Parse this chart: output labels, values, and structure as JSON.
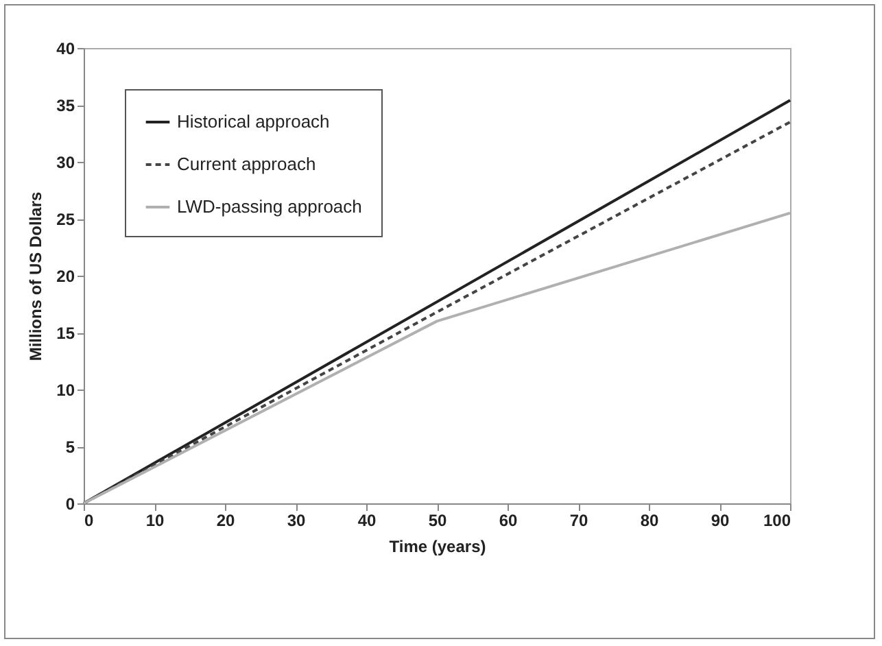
{
  "chart_data": {
    "type": "line",
    "xlabel": "Time (years)",
    "ylabel": "Millions of US Dollars",
    "xlim": [
      0,
      100
    ],
    "xticks": [
      0,
      10,
      20,
      30,
      40,
      50,
      60,
      70,
      80,
      90,
      100
    ],
    "ylim": [
      0,
      40
    ],
    "yticks": [
      0,
      5,
      10,
      15,
      20,
      25,
      30,
      35,
      40
    ],
    "grid": false,
    "legend": "top left",
    "marker": "none",
    "series": [
      {
        "name": "Historical approach",
        "color": "#222222",
        "line_style": "solid",
        "x": [
          0,
          100
        ],
        "values": [
          0,
          35.4
        ]
      },
      {
        "name": "Current approach",
        "color": "#444444",
        "line_style": "dashed",
        "x": [
          0,
          50,
          100
        ],
        "values": [
          0,
          16.8,
          33.5
        ]
      },
      {
        "name": "LWD-passing approach",
        "color": "#b0b0b0",
        "line_style": "solid",
        "x": [
          0,
          50,
          100
        ],
        "values": [
          0,
          16,
          25.5
        ]
      }
    ]
  }
}
